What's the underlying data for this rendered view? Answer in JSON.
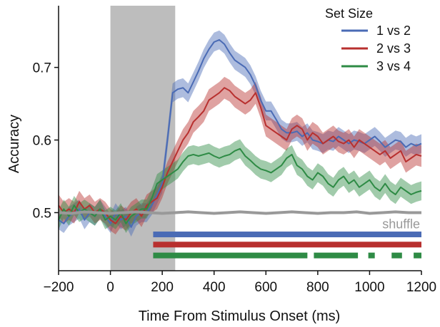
{
  "chart_data": {
    "type": "line",
    "xlabel": "Time From Stimulus Onset (ms)",
    "ylabel": "Accuracy",
    "xlim": [
      -200,
      1200
    ],
    "ylim": [
      0.42,
      0.785
    ],
    "x_ticks": [
      -200,
      0,
      200,
      400,
      600,
      800,
      1000,
      1200
    ],
    "x_tick_labels": [
      "−200",
      "0",
      "200",
      "400",
      "600",
      "800",
      "1000",
      "1200"
    ],
    "y_ticks": [
      0.5,
      0.6,
      0.7
    ],
    "y_tick_labels": [
      "0.5",
      "0.6",
      "0.7"
    ],
    "grid": false,
    "legend": {
      "title": "Set Size",
      "position": "top-right"
    },
    "stimulus_window": {
      "x_start": 0,
      "x_end": 250,
      "color": "#bdbdbd"
    },
    "series": [
      {
        "name": "1 vs 2",
        "color": "#4a6bb5",
        "x": [
          -200,
          -180,
          -160,
          -140,
          -120,
          -100,
          -80,
          -60,
          -40,
          -20,
          0,
          20,
          40,
          60,
          80,
          100,
          120,
          140,
          160,
          180,
          200,
          220,
          240,
          260,
          280,
          300,
          320,
          340,
          360,
          380,
          400,
          420,
          440,
          460,
          480,
          500,
          520,
          540,
          560,
          580,
          600,
          620,
          640,
          660,
          680,
          700,
          720,
          740,
          760,
          780,
          800,
          820,
          840,
          860,
          880,
          900,
          920,
          940,
          960,
          980,
          1000,
          1020,
          1040,
          1060,
          1080,
          1100,
          1120,
          1140,
          1160,
          1180,
          1200
        ],
        "y": [
          0.49,
          0.485,
          0.495,
          0.5,
          0.505,
          0.49,
          0.5,
          0.495,
          0.505,
          0.495,
          0.485,
          0.5,
          0.49,
          0.495,
          0.48,
          0.495,
          0.5,
          0.5,
          0.51,
          0.525,
          0.54,
          0.6,
          0.665,
          0.67,
          0.672,
          0.665,
          0.68,
          0.695,
          0.712,
          0.725,
          0.735,
          0.738,
          0.732,
          0.72,
          0.71,
          0.705,
          0.7,
          0.69,
          0.675,
          0.655,
          0.64,
          0.64,
          0.628,
          0.615,
          0.61,
          0.61,
          0.612,
          0.605,
          0.61,
          0.6,
          0.598,
          0.595,
          0.6,
          0.598,
          0.605,
          0.6,
          0.595,
          0.6,
          0.598,
          0.595,
          0.6,
          0.605,
          0.598,
          0.59,
          0.595,
          0.6,
          0.598,
          0.59,
          0.595,
          0.592,
          0.595
        ],
        "band": 0.013
      },
      {
        "name": "2 vs 3",
        "color": "#b8302f",
        "x": [
          -200,
          -180,
          -160,
          -140,
          -120,
          -100,
          -80,
          -60,
          -40,
          -20,
          0,
          20,
          40,
          60,
          80,
          100,
          120,
          140,
          160,
          180,
          200,
          220,
          240,
          260,
          280,
          300,
          320,
          340,
          360,
          380,
          400,
          420,
          440,
          460,
          480,
          500,
          520,
          540,
          560,
          580,
          600,
          620,
          640,
          660,
          680,
          700,
          720,
          740,
          760,
          780,
          800,
          820,
          840,
          860,
          880,
          900,
          920,
          940,
          960,
          980,
          1000,
          1020,
          1040,
          1060,
          1080,
          1100,
          1120,
          1140,
          1160,
          1180,
          1200
        ],
        "y": [
          0.51,
          0.5,
          0.505,
          0.5,
          0.515,
          0.505,
          0.51,
          0.5,
          0.505,
          0.5,
          0.49,
          0.485,
          0.495,
          0.49,
          0.5,
          0.505,
          0.495,
          0.51,
          0.515,
          0.52,
          0.535,
          0.555,
          0.57,
          0.585,
          0.6,
          0.61,
          0.625,
          0.632,
          0.64,
          0.655,
          0.66,
          0.665,
          0.672,
          0.668,
          0.66,
          0.655,
          0.65,
          0.655,
          0.665,
          0.645,
          0.62,
          0.615,
          0.61,
          0.605,
          0.6,
          0.615,
          0.62,
          0.615,
          0.6,
          0.61,
          0.605,
          0.595,
          0.6,
          0.605,
          0.598,
          0.595,
          0.6,
          0.59,
          0.6,
          0.595,
          0.59,
          0.585,
          0.58,
          0.585,
          0.575,
          0.58,
          0.585,
          0.57,
          0.575,
          0.58,
          0.578
        ],
        "band": 0.015
      },
      {
        "name": "3 vs 4",
        "color": "#2e8b45",
        "x": [
          -200,
          -180,
          -160,
          -140,
          -120,
          -100,
          -80,
          -60,
          -40,
          -20,
          0,
          20,
          40,
          60,
          80,
          100,
          120,
          140,
          160,
          180,
          200,
          220,
          240,
          260,
          280,
          300,
          320,
          340,
          360,
          380,
          400,
          420,
          440,
          460,
          480,
          500,
          520,
          540,
          560,
          580,
          600,
          620,
          640,
          660,
          680,
          700,
          720,
          740,
          760,
          780,
          800,
          820,
          840,
          860,
          880,
          900,
          920,
          940,
          960,
          980,
          1000,
          1020,
          1040,
          1060,
          1080,
          1100,
          1120,
          1140,
          1160,
          1180,
          1200
        ],
        "y": [
          0.49,
          0.505,
          0.495,
          0.51,
          0.5,
          0.505,
          0.5,
          0.495,
          0.505,
          0.49,
          0.495,
          0.49,
          0.5,
          0.485,
          0.495,
          0.5,
          0.505,
          0.505,
          0.52,
          0.54,
          0.545,
          0.55,
          0.555,
          0.56,
          0.57,
          0.578,
          0.58,
          0.578,
          0.58,
          0.582,
          0.578,
          0.575,
          0.578,
          0.58,
          0.585,
          0.588,
          0.578,
          0.572,
          0.565,
          0.56,
          0.558,
          0.555,
          0.56,
          0.565,
          0.575,
          0.58,
          0.565,
          0.56,
          0.55,
          0.545,
          0.555,
          0.55,
          0.54,
          0.535,
          0.545,
          0.55,
          0.54,
          0.545,
          0.535,
          0.54,
          0.545,
          0.535,
          0.53,
          0.54,
          0.53,
          0.525,
          0.535,
          0.53,
          0.525,
          0.528,
          0.53
        ],
        "band": 0.013
      },
      {
        "name": "shuffle",
        "color": "#999999",
        "x": [
          -200,
          -150,
          -100,
          -50,
          0,
          50,
          100,
          150,
          200,
          250,
          300,
          350,
          400,
          450,
          500,
          550,
          600,
          650,
          700,
          750,
          800,
          850,
          900,
          950,
          1000,
          1050,
          1100,
          1150,
          1200
        ],
        "y": [
          0.5,
          0.499,
          0.501,
          0.5,
          0.499,
          0.5,
          0.501,
          0.5,
          0.499,
          0.5,
          0.501,
          0.5,
          0.499,
          0.5,
          0.501,
          0.5,
          0.499,
          0.5,
          0.501,
          0.5,
          0.499,
          0.5,
          0.5,
          0.501,
          0.499,
          0.5,
          0.501,
          0.5,
          0.5
        ]
      }
    ],
    "significance_bars": [
      {
        "series": "1 vs 2",
        "color": "#4a6bb5",
        "y": 0.47,
        "segments": [
          [
            165,
            1200
          ]
        ]
      },
      {
        "series": "2 vs 3",
        "color": "#b8302f",
        "y": 0.456,
        "segments": [
          [
            165,
            1200
          ]
        ]
      },
      {
        "series": "3 vs 4",
        "color": "#2e8b45",
        "y": 0.441,
        "segments": [
          [
            165,
            760
          ],
          [
            785,
            955
          ],
          [
            995,
            1020
          ],
          [
            1085,
            1125
          ],
          [
            1170,
            1200
          ]
        ]
      }
    ]
  }
}
